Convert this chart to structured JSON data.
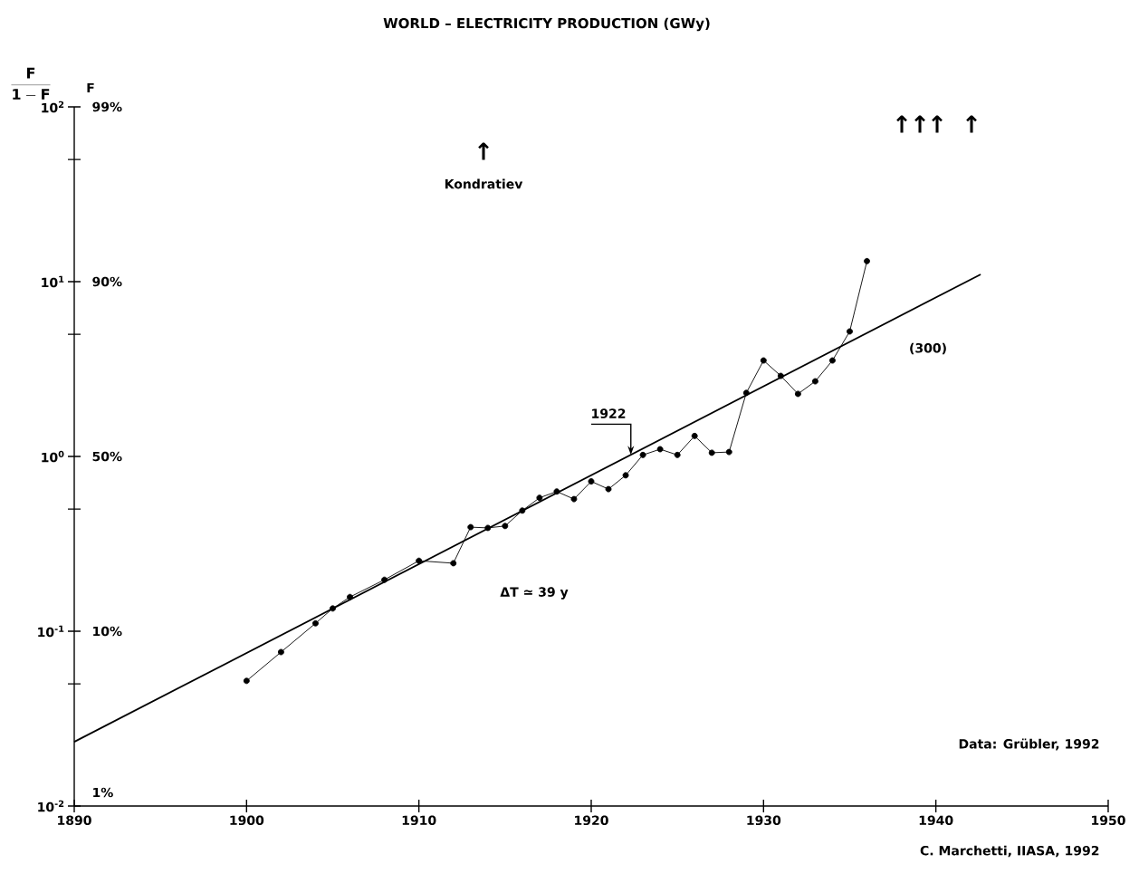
{
  "chart_data": {
    "type": "line",
    "title": "WORLD – ELECTRICITY PRODUCTION (GWy)",
    "ylabel": "\\mathbf{\\frac{F}{1-F}}",
    "log": "y",
    "xlim": [
      1890,
      1950
    ],
    "xticks": [
      1890,
      1900,
      1910,
      1920,
      1930,
      1940,
      1950
    ],
    "ylim": [
      0.01,
      100
    ],
    "yticks": [
      {
        "value": 0.01,
        "label": "10$^{-2}$"
      },
      {
        "value": 0.05,
        "label": null
      },
      {
        "value": 0.1,
        "label": "10$^{-1}$"
      },
      {
        "value": 0.5,
        "label": null
      },
      {
        "value": 1,
        "label": "10$^{0}$"
      },
      {
        "value": 5,
        "label": null
      },
      {
        "value": 10,
        "label": "10$^{1}$"
      },
      {
        "value": 50,
        "label": null
      },
      {
        "value": 100,
        "label": "10$^{2}$"
      }
    ],
    "series": [
      {
        "color": "#000000",
        "marker": "circle",
        "line_style": "solid",
        "x": [
          1900,
          1902,
          1904,
          1905,
          1906,
          1908,
          1910,
          1912,
          1913,
          1914,
          1915,
          1916,
          1917,
          1918,
          1919,
          1920,
          1921,
          1922,
          1923,
          1924,
          1925,
          1926,
          1927,
          1928,
          1929,
          1930,
          1931,
          1932,
          1933,
          1934,
          1935,
          1936
        ],
        "values": [
          0.052,
          0.076,
          0.111,
          0.135,
          0.157,
          0.197,
          0.253,
          0.245,
          0.394,
          0.39,
          0.4,
          0.49,
          0.58,
          0.63,
          0.57,
          0.72,
          0.65,
          0.78,
          1.02,
          1.1,
          1.02,
          1.31,
          1.05,
          1.06,
          2.31,
          3.54,
          2.89,
          2.28,
          2.69,
          3.54,
          5.19,
          13.1
        ]
      },
      {
        "color": "#000000",
        "marker": "none",
        "line_style": "solid",
        "x": [
          1890,
          1942.6
        ],
        "values": [
          0.0233,
          11.0
        ]
      }
    ],
    "annotations": [
      "Kondratiev",
      "↑",
      "↑",
      "↑",
      "↑",
      "↑",
      {
        "text": "1922",
        "x": 1922.3,
        "y": 1.02
      },
      "ΔT ≃ 39 y",
      "(300)",
      "Data: Grübler, 1992",
      "C. Marchetti, IIASA, 1992",
      "99%",
      "90%",
      "50%",
      "10%",
      "1%",
      "F"
    ]
  }
}
